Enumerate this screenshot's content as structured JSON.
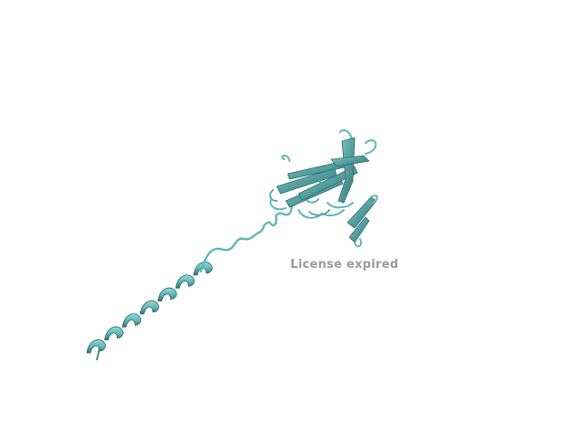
{
  "render": {
    "background": "#ffffff",
    "ribbon_color": "#5fb8b8",
    "ribbon_shadow": "#2e6f6f",
    "ribbon_highlight": "#9ad6d6"
  },
  "watermark": {
    "text": "License expired",
    "color": "#9a9a9a"
  }
}
